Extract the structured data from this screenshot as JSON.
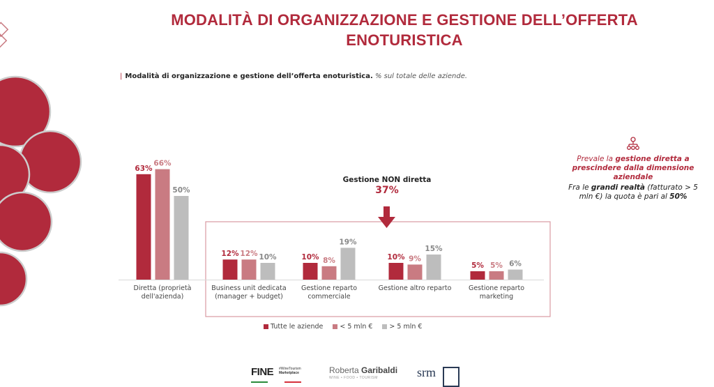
{
  "header": {
    "title_line1": "MODALITÀ DI ORGANIZZAZIONE E GESTIONE DELL’OFFERTA",
    "title_line2": "ENOTURISTICA",
    "subtitle_bold": "Modalità di organizzazione e gestione dell’offerta enoturistica.",
    "subtitle_italic": "% sul totale delle aziende."
  },
  "chart_data": {
    "type": "bar",
    "title": "Modalità di organizzazione e gestione dell’offerta enoturistica",
    "xlabel": "",
    "ylabel": "% sul totale delle aziende",
    "ylim": [
      0,
      70
    ],
    "grid": false,
    "legend_position": "bottom",
    "categories": [
      [
        "Diretta (proprietà",
        "dell'azienda)"
      ],
      [
        "Business unit dedicata",
        "(manager + budget)"
      ],
      [
        "Gestione reparto",
        "commerciale"
      ],
      [
        "Gestione altro reparto"
      ],
      [
        "Gestione reparto",
        "marketing"
      ]
    ],
    "series": [
      {
        "name": "Tutte le aziende",
        "color": "#b12a3c",
        "values": [
          63,
          12,
          10,
          10,
          5
        ],
        "labels": [
          "63%",
          "12%",
          "10%",
          "10%",
          "5%"
        ]
      },
      {
        "name": "< 5 mln €",
        "color": "#c97b82",
        "values": [
          66,
          12,
          8,
          9,
          5
        ],
        "labels": [
          "66%",
          "12%",
          "8%",
          "9%",
          "5%"
        ]
      },
      {
        "name": "> 5 mln €",
        "color": "#bdbdbd",
        "values": [
          50,
          10,
          19,
          15,
          6
        ],
        "labels": [
          "50%",
          "10%",
          "19%",
          "15%",
          "6%"
        ]
      }
    ],
    "label_colors": [
      "#b12a3c",
      "#c97b82",
      "#888888"
    ],
    "annotation": {
      "label": "Gestione NON diretta",
      "value": "37%"
    }
  },
  "legend": [
    {
      "label": "Tutte le aziende",
      "color": "#b12a3c"
    },
    {
      "label": "< 5 mln €",
      "color": "#c97b82"
    },
    {
      "label": "> 5 mln €",
      "color": "#bdbdbd"
    }
  ],
  "sidebar": {
    "icon": "org-chart-icon",
    "line1_pre": "Prevale la ",
    "line1_bold": "gestione diretta a prescindere dalla dimensione aziendale",
    "line2_pre": "Fra le ",
    "line2_bold": "grandi realtà",
    "line2_mid": " (fatturato > 5 mln €) la quota è pari al ",
    "line2_value": "50%"
  },
  "footer": {
    "logo1_big": "FINE",
    "logo1_small1": "#WineTourism",
    "logo1_small2": "Marketplace",
    "logo1_small3": "Italy",
    "logo2_name_light": "Roberta ",
    "logo2_name_bold": "Garibaldi",
    "logo2_tagline": "WINE • FOOD • TOURISM",
    "logo3": "srm"
  },
  "colors": {
    "accent": "#b12a3c",
    "light_accent": "#c97b82",
    "grey": "#bdbdbd"
  }
}
